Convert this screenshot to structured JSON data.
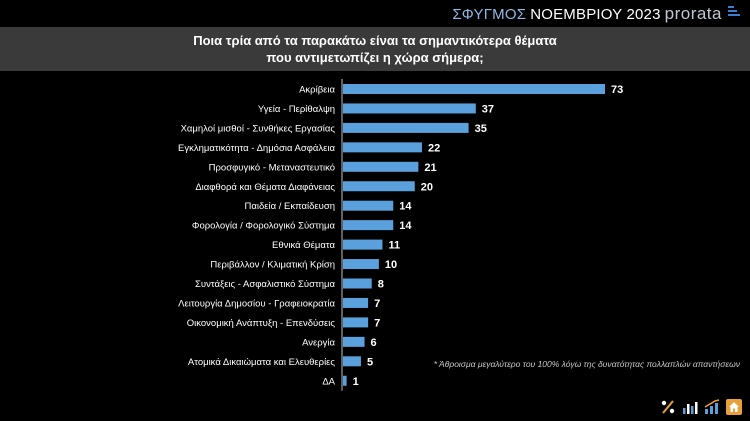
{
  "brand": {
    "survey": "ΣΦΥΓΜΟΣ",
    "month_year": "ΝΟΕΜΒΡΙΟΥ 2023",
    "logo": "prorata"
  },
  "title": {
    "line1": "Ποια τρία από τα παρακάτω είναι τα σημαντικότερα θέματα",
    "line2": "που αντιμετωπίζει η χώρα σήμερα;"
  },
  "footnote": "* Άθροισμα μεγαλύτερο του 100% λόγω της δυνατότητας πολλαπλών απαντήσεων",
  "colors": {
    "bar": "#5aa0dc",
    "background": "#000000",
    "band": "#3a3a3a"
  },
  "footer_icons": [
    "percent-icon",
    "bar-chart-icon",
    "growth-chart-icon",
    "house-icon"
  ],
  "chart_data": {
    "type": "bar",
    "orientation": "horizontal",
    "categories": [
      "Ακρίβεια",
      "Υγεία - Περίθαλψη",
      "Χαμηλοί μισθοί - Συνθήκες Εργασίας",
      "Εγκληματικότητα - Δημόσια Ασφάλεια",
      "Προσφυγικό - Μεταναστευτικό",
      "Διαφθορά και Θέματα Διαφάνειας",
      "Παιδεία / Εκπαίδευση",
      "Φορολογία / Φορολογικό Σύστημα",
      "Εθνικά Θέματα",
      "Περιβάλλον / Κλιματική Κρίση",
      "Συντάξεις - Ασφαλιστικό Σύστημα",
      "Λειτουργία Δημοσίου - Γραφειοκρατία",
      "Οικονομική Ανάπτυξη - Επενδύσεις",
      "Ανεργία",
      "Ατομικά Δικαιώματα και Ελευθερίες",
      "ΔΑ"
    ],
    "values": [
      73,
      37,
      35,
      22,
      21,
      20,
      14,
      14,
      11,
      10,
      8,
      7,
      7,
      6,
      5,
      1
    ],
    "xlim": [
      0,
      73
    ],
    "grid": false,
    "legend": "none",
    "data_labels": true
  }
}
